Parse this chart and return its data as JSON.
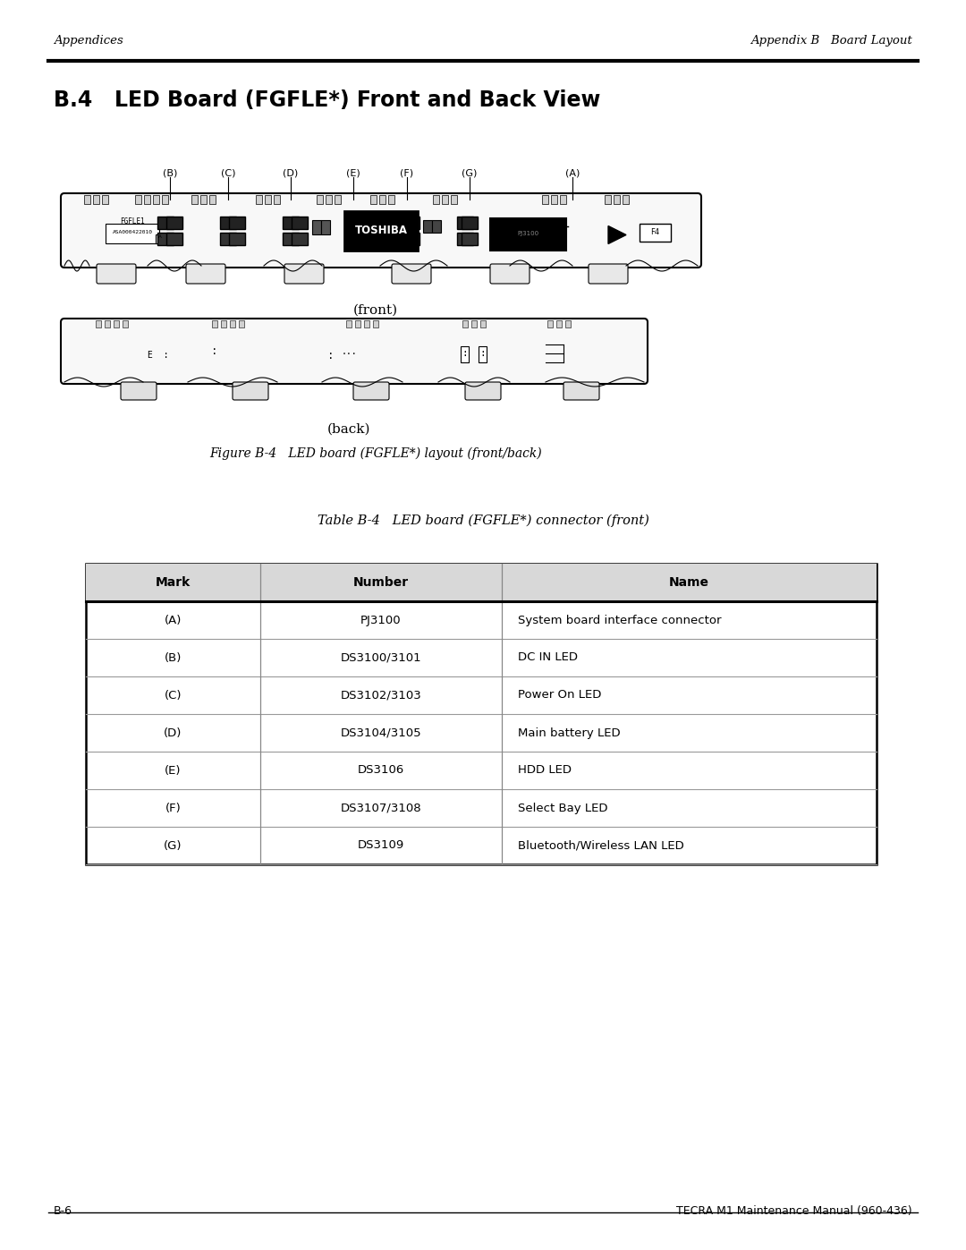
{
  "header_left": "Appendices",
  "header_right": "Appendix B   Board Layout",
  "section_title": "B.4   LED Board (FGFLE*) Front and Back View",
  "front_label": "(front)",
  "back_label": "(back)",
  "figure_caption": "Figure B-4   LED board (FGFLE*) layout (front/back)",
  "table_caption": "Table B-4   LED board (FGFLE*) connector (front)",
  "table_headers": [
    "Mark",
    "Number",
    "Name"
  ],
  "table_rows": [
    [
      "(A)",
      "PJ3100",
      "System board interface connector"
    ],
    [
      "(B)",
      "DS3100/3101",
      "DC IN LED"
    ],
    [
      "(C)",
      "DS3102/3103",
      "Power On LED"
    ],
    [
      "(D)",
      "DS3104/3105",
      "Main battery LED"
    ],
    [
      "(E)",
      "DS3106",
      "HDD LED"
    ],
    [
      "(F)",
      "DS3107/3108",
      "Select Bay LED"
    ],
    [
      "(G)",
      "DS3109",
      "Bluetooth/Wireless LAN LED"
    ]
  ],
  "footer_left": "B-6",
  "footer_right": "TECRA M1 Maintenance Manual (960-436)",
  "bg_color": "#ffffff"
}
